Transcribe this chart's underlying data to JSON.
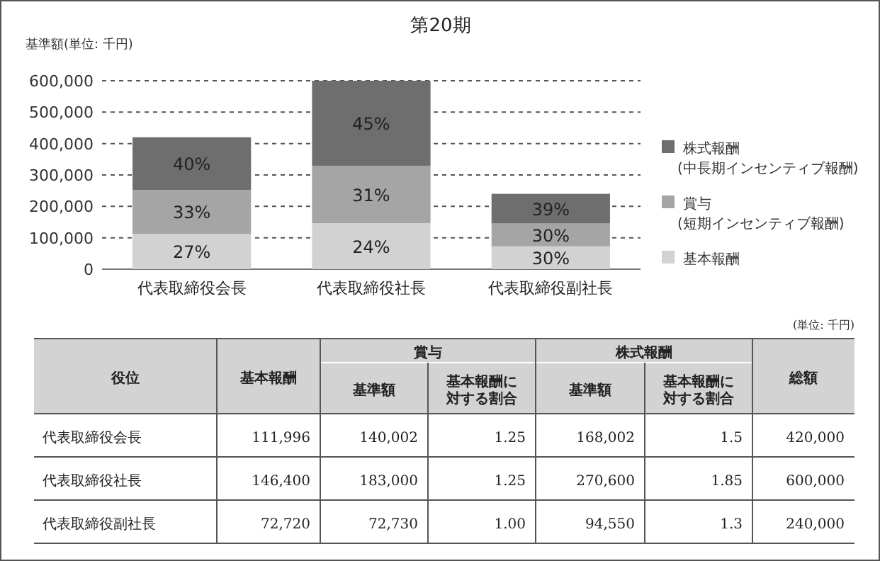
{
  "chart_data": [
    {
      "type": "bar",
      "title": "第20期",
      "ylabel": "基準額(単位: 千円)",
      "stacked": true,
      "categories": [
        "代表取締役会長",
        "代表取締役社長",
        "代表取締役副社長"
      ],
      "series": [
        {
          "name": "基本報酬",
          "color": "#d2d2d2",
          "values": [
            111996,
            146400,
            72720
          ]
        },
        {
          "name": "賞与\n(短期インセンティブ報酬)",
          "color": "#a5a5a5",
          "values": [
            140002,
            183000,
            72730
          ]
        },
        {
          "name": "株式報酬\n(中長期インセンティブ報酬)",
          "color": "#6e6e6e",
          "values": [
            168002,
            270600,
            94550
          ]
        }
      ],
      "annotations": [
        "27%",
        "24%",
        "30%",
        "33%",
        "31%",
        "30%",
        "40%",
        "45%",
        "39%"
      ],
      "ylim": [
        0,
        600000
      ],
      "yticks": [
        0,
        {
          "value": 100000,
          "label": "100,000"
        },
        {
          "value": 200000,
          "label": "200,000"
        },
        {
          "value": 300000,
          "label": "300,000"
        },
        {
          "value": 400000,
          "label": "400,000"
        },
        {
          "value": 500000,
          "label": "500,000"
        },
        {
          "value": 600000,
          "label": "600,000"
        }
      ],
      "grid": "y",
      "line_style": "dashed",
      "legend": "right"
    },
    {
      "type": "other",
      "annotations": [
        "(単位: 千円)",
        "役位",
        "基本報酬",
        "賞与",
        "株式報酬",
        "総額",
        "基準額",
        "基本報酬に対する割合",
        "基準額",
        "基本報酬に対する割合",
        "代表取締役会長",
        "111,996",
        "140,002",
        "1.25",
        "168,002",
        "1.5",
        "420,000",
        "代表取締役社長",
        "146,400",
        "183,000",
        "1.25",
        "270,600",
        "1.85",
        "600,000",
        "代表取締役副社長",
        "72,720",
        "72,730",
        "1.00",
        "94,550",
        "1.3",
        "240,000"
      ]
    }
  ]
}
